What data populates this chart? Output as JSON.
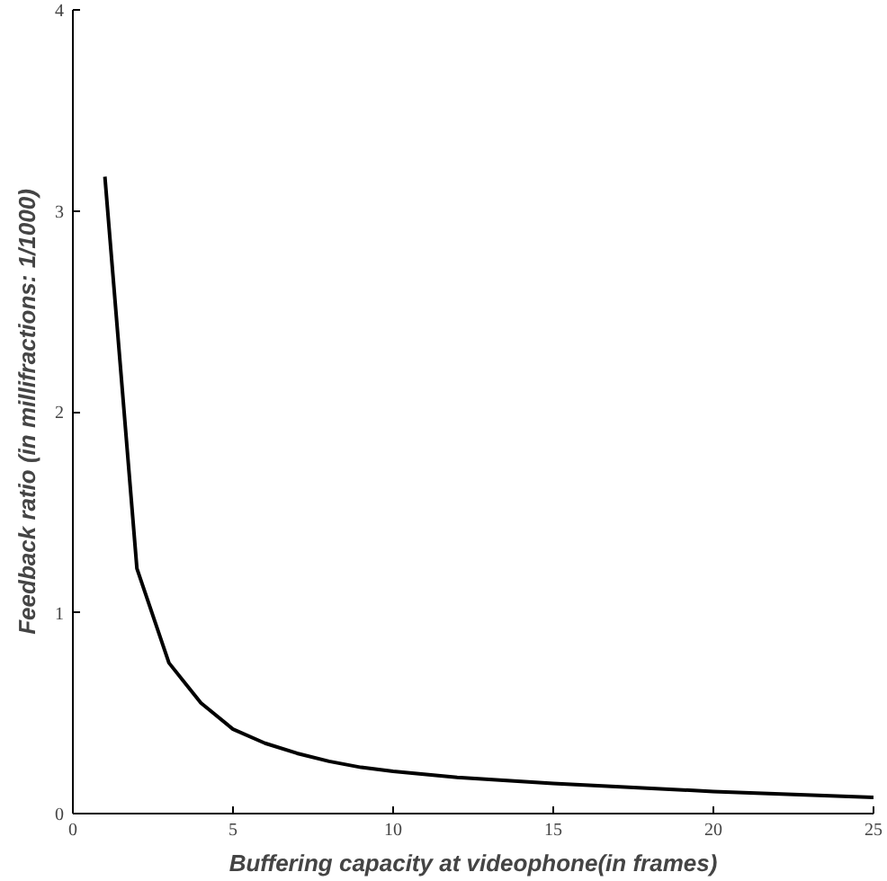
{
  "chart_data": {
    "type": "line",
    "xlabel": "Buffering capacity at videophone(in frames)",
    "ylabel": "Feedback ratio (in millifractions: 1/1000)",
    "x": [
      1,
      2,
      3,
      4,
      5,
      6,
      7,
      8,
      9,
      10,
      12,
      15,
      20,
      25
    ],
    "series": [
      {
        "color": "#000000",
        "values": [
          3.17,
          1.22,
          0.75,
          0.55,
          0.42,
          0.35,
          0.3,
          0.26,
          0.23,
          0.21,
          0.18,
          0.15,
          0.11,
          0.08
        ]
      }
    ],
    "xlim": [
      0,
      25
    ],
    "ylim": [
      0,
      4
    ],
    "xticks": [
      0,
      5,
      10,
      15,
      20,
      25
    ],
    "yticks": [
      0,
      1,
      2,
      3,
      4
    ],
    "grid": false,
    "marker": "none",
    "line_style": "solid"
  }
}
